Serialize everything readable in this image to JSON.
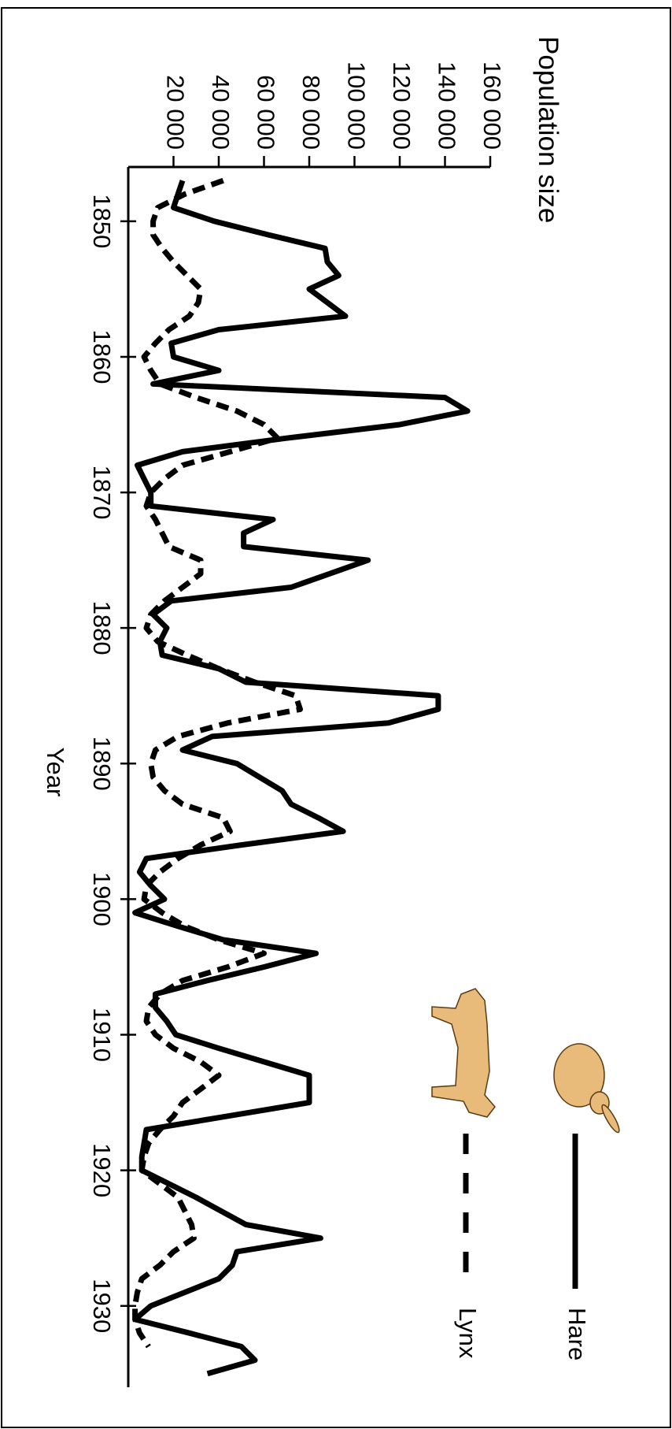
{
  "chart_data": {
    "type": "line",
    "y_label": "Population size",
    "x_label": "Year",
    "x": [
      1847,
      1848,
      1849,
      1850,
      1851,
      1852,
      1853,
      1854,
      1855,
      1856,
      1857,
      1858,
      1859,
      1860,
      1861,
      1862,
      1863,
      1864,
      1865,
      1866,
      1867,
      1868,
      1869,
      1870,
      1871,
      1872,
      1873,
      1874,
      1875,
      1876,
      1877,
      1878,
      1879,
      1880,
      1881,
      1882,
      1883,
      1884,
      1885,
      1886,
      1887,
      1888,
      1889,
      1890,
      1891,
      1892,
      1893,
      1894,
      1895,
      1896,
      1897,
      1898,
      1899,
      1900,
      1901,
      1902,
      1903,
      1904,
      1905,
      1906,
      1907,
      1908,
      1909,
      1910,
      1911,
      1912,
      1913,
      1914,
      1915,
      1916,
      1917,
      1918,
      1919,
      1920,
      1921,
      1922,
      1923,
      1924,
      1925,
      1926,
      1927,
      1928,
      1929,
      1930,
      1931,
      1932,
      1933,
      1934,
      1935
    ],
    "series": [
      {
        "name": "Hare",
        "color": "#000000",
        "style": "solid",
        "values": [
          24000,
          22000,
          20000,
          38000,
          62000,
          87000,
          88000,
          93000,
          80000,
          88000,
          96000,
          40000,
          19000,
          20000,
          40000,
          11000,
          140000,
          150000,
          120000,
          70000,
          24000,
          4000,
          7000,
          10000,
          10000,
          64000,
          51000,
          51000,
          106000,
          89000,
          72000,
          19000,
          11000,
          17000,
          14000,
          15000,
          40000,
          52000,
          137000,
          137000,
          115000,
          37000,
          24000,
          48000,
          58000,
          68000,
          72000,
          84000,
          95000,
          50000,
          8000,
          5000,
          10000,
          16000,
          3000,
          22000,
          42000,
          83000,
          60000,
          35000,
          12000,
          12000,
          17000,
          21000,
          40000,
          60000,
          80000,
          80000,
          80000,
          44000,
          8000,
          7000,
          6000,
          6000,
          18000,
          30000,
          41000,
          52000,
          85000,
          48000,
          46000,
          40000,
          25000,
          10000,
          3000,
          27000,
          50000,
          56000,
          35000
        ]
      },
      {
        "name": "Lynx",
        "color": "#000000",
        "style": "dashed",
        "values": [
          42000,
          25000,
          13000,
          11000,
          11000,
          15000,
          20000,
          26000,
          32000,
          31000,
          27000,
          18000,
          12000,
          7000,
          10000,
          14000,
          30000,
          48000,
          60000,
          66000,
          45000,
          24000,
          16000,
          10000,
          8000,
          12000,
          15000,
          18000,
          32000,
          32000,
          24000,
          16000,
          10000,
          8000,
          13000,
          26000,
          40000,
          56000,
          74000,
          76000,
          44000,
          22000,
          12000,
          10000,
          11000,
          16000,
          24000,
          42000,
          45000,
          32000,
          22000,
          14000,
          8000,
          7000,
          15000,
          25000,
          40000,
          60000,
          44000,
          24000,
          14000,
          9000,
          8000,
          12000,
          20000,
          32000,
          40000,
          32000,
          24000,
          20000,
          14000,
          9000,
          7000,
          6000,
          14000,
          22000,
          25000,
          28000,
          29000,
          20000,
          14000,
          6000,
          4000,
          3000,
          3000,
          5000,
          9000,
          null,
          null
        ]
      }
    ],
    "xlim": [
      1846,
      1936
    ],
    "xticks": [
      1850,
      1860,
      1870,
      1880,
      1890,
      1900,
      1910,
      1920,
      1930
    ],
    "ylim": [
      0,
      160000
    ],
    "yticks": [
      {
        "value": 20000,
        "label": "20 000"
      },
      {
        "value": 40000,
        "label": "40 000"
      },
      {
        "value": 60000,
        "label": "60 000"
      },
      {
        "value": 80000,
        "label": "80 000"
      },
      {
        "value": 100000,
        "label": "100 000"
      },
      {
        "value": 120000,
        "label": "120 000"
      },
      {
        "value": 140000,
        "label": "140 000"
      },
      {
        "value": 160000,
        "label": "160 000"
      }
    ],
    "grid": false,
    "rotation": 90
  }
}
